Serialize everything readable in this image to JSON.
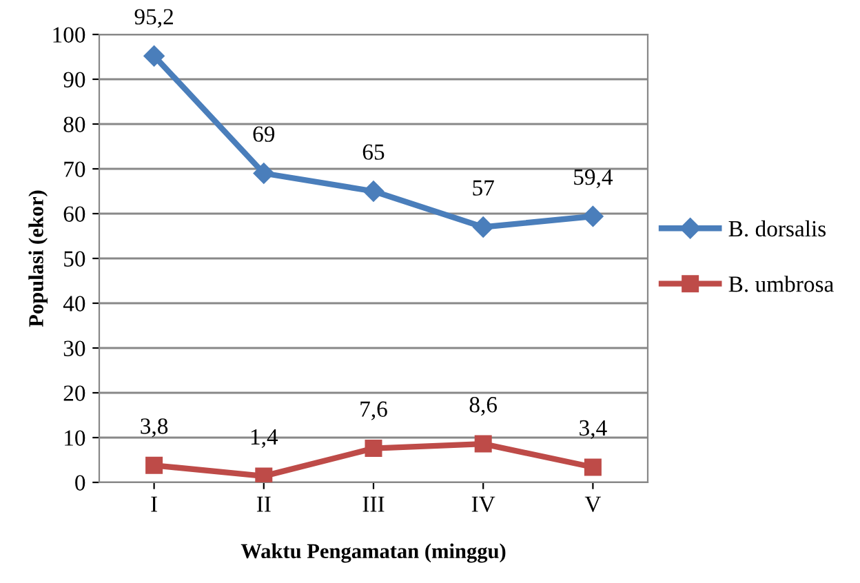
{
  "chart_data": {
    "type": "line",
    "xlabel": "Waktu Pengamatan (minggu)",
    "ylabel": "Populasi (ekor)",
    "categories": [
      "I",
      "II",
      "III",
      "IV",
      "V"
    ],
    "series": [
      {
        "name": "B. dorsalis",
        "color": "#4a7ebb",
        "values": [
          95.2,
          69,
          65,
          57,
          59.4
        ],
        "value_labels": [
          "95,2",
          "69",
          "65",
          "57",
          "59,4"
        ],
        "marker": "diamond"
      },
      {
        "name": "B. umbrosa",
        "color": "#be4b48",
        "values": [
          3.8,
          1.4,
          7.6,
          8.6,
          3.4
        ],
        "value_labels": [
          "3,8",
          "1,4",
          "7,6",
          "8,6",
          "3,4"
        ],
        "marker": "square"
      }
    ],
    "ylim": [
      0,
      100
    ],
    "yticks": [
      0,
      10,
      20,
      30,
      40,
      50,
      60,
      70,
      80,
      90,
      100
    ],
    "grid": "y",
    "legend": "right",
    "line_style": "solid"
  }
}
